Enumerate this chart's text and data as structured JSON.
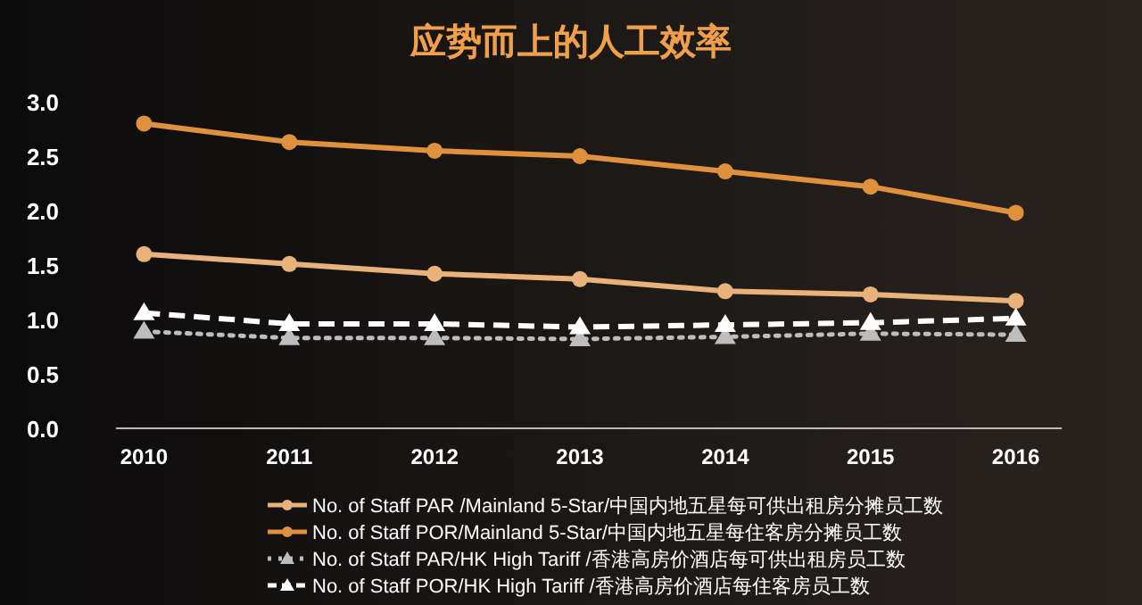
{
  "chart_data": {
    "type": "line",
    "title": "应势而上的人工效率",
    "categories": [
      "2010",
      "2011",
      "2012",
      "2013",
      "2014",
      "2015",
      "2016"
    ],
    "ylim": [
      0,
      3
    ],
    "yticks": [
      {
        "value": 0,
        "label": "0.0"
      },
      {
        "value": 0.5,
        "label": "0.5"
      },
      {
        "value": 1,
        "label": "1.0"
      },
      {
        "value": 1.5,
        "label": "1.5"
      },
      {
        "value": 2,
        "label": "2.0"
      },
      {
        "value": 2.5,
        "label": "2.5"
      },
      {
        "value": 3,
        "label": "3.0"
      }
    ],
    "grid": false,
    "legend": "bottom",
    "series": [
      {
        "name": "No. of Staff PAR /Mainland 5-Star/中国内地五星每可供出租房分摊员工数",
        "color": "#e8b27a",
        "marker": "circle",
        "line_style": "solid",
        "values": [
          1.6,
          1.51,
          1.42,
          1.37,
          1.26,
          1.23,
          1.17
        ]
      },
      {
        "name": "No. of Staff POR/Mainland 5-Star/中国内地五星每住客房分摊员工数",
        "color": "#e0913e",
        "marker": "circle",
        "line_style": "solid",
        "values": [
          2.8,
          2.63,
          2.55,
          2.5,
          2.36,
          2.22,
          1.98
        ]
      },
      {
        "name": "No. of Staff PAR/HK High Tariff /香港高房价酒店每可供出租房员工数",
        "color": "#bdbdbd",
        "marker": "triangle",
        "line_style": "dotted",
        "values": [
          0.89,
          0.83,
          0.83,
          0.82,
          0.84,
          0.87,
          0.86
        ]
      },
      {
        "name": "No. of Staff POR/HK High Tariff /香港高房价酒店每住客房员工数",
        "color": "#ffffff",
        "marker": "triangle",
        "line_style": "dashed",
        "values": [
          1.06,
          0.96,
          0.96,
          0.93,
          0.95,
          0.97,
          1.01
        ]
      }
    ]
  }
}
